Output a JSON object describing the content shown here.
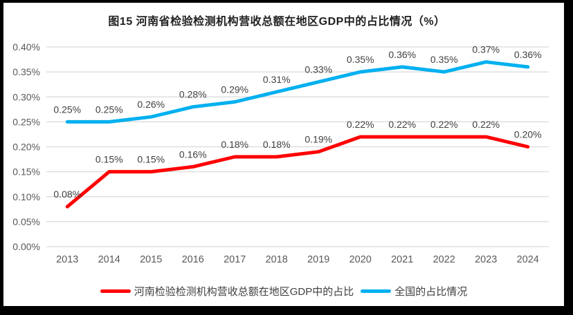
{
  "title": "图15  河南省检验检测机构营收总额在地区GDP中的占比情况（%）",
  "colors": {
    "henan_series": "#fe0000",
    "national_series": "#00b0f0",
    "gridline": "#d9d9d9",
    "axis_text": "#595959",
    "data_label_text": "#404040",
    "frame": "#000000",
    "background": "#ffffff"
  },
  "chart_data": {
    "type": "line",
    "categories": [
      "2013",
      "2014",
      "2015",
      "2016",
      "2017",
      "2018",
      "2019",
      "2020",
      "2021",
      "2022",
      "2023",
      "2024"
    ],
    "series": [
      {
        "name": "河南检验检测机构营收总额在地区GDP中的占比",
        "color": "#fe0000",
        "values": [
          0.08,
          0.15,
          0.15,
          0.16,
          0.18,
          0.18,
          0.19,
          0.22,
          0.22,
          0.22,
          0.22,
          0.2
        ],
        "labels": [
          "0.08%",
          "0.15%",
          "0.15%",
          "0.16%",
          "0.18%",
          "0.18%",
          "0.19%",
          "0.22%",
          "0.22%",
          "0.22%",
          "0.22%",
          "0.20%"
        ]
      },
      {
        "name": "全国的占比情况",
        "color": "#00b0f0",
        "values": [
          0.25,
          0.25,
          0.26,
          0.28,
          0.29,
          0.31,
          0.33,
          0.35,
          0.36,
          0.35,
          0.37,
          0.36
        ],
        "labels": [
          "0.25%",
          "0.25%",
          "0.26%",
          "0.28%",
          "0.29%",
          "0.31%",
          "0.33%",
          "0.35%",
          "0.36%",
          "0.35%",
          "0.37%",
          "0.36%"
        ]
      }
    ],
    "title": "图15  河南省检验检测机构营收总额在地区GDP中的占比情况（%）",
    "xlabel": "",
    "ylabel": "",
    "ylim": [
      0.0,
      0.004
    ],
    "ytick_step": 0.0005,
    "ytick_labels": [
      "0.00%",
      "0.05%",
      "0.10%",
      "0.15%",
      "0.20%",
      "0.25%",
      "0.30%",
      "0.35%",
      "0.40%"
    ],
    "grid": true,
    "legend_position": "bottom",
    "data_labels_shown": true
  }
}
